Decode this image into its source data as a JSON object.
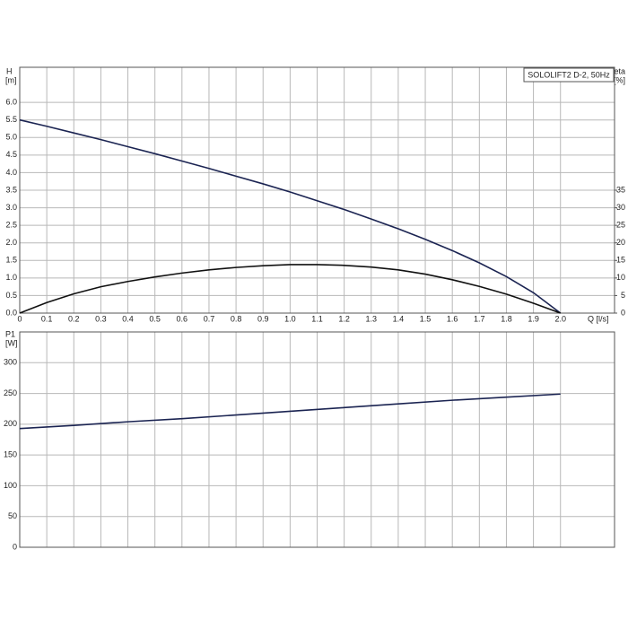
{
  "chart_data": [
    {
      "type": "line",
      "title": "SOLOLIFT2 D-2, 50Hz",
      "ylabel": "H",
      "yunit": "[m]",
      "y2label": "eta",
      "y2unit": "[%]",
      "xlabel": "Q [l/s]",
      "x": [
        0,
        0.1,
        0.2,
        0.3,
        0.4,
        0.5,
        0.6,
        0.7,
        0.8,
        0.9,
        1.0,
        1.1,
        1.2,
        1.3,
        1.4,
        1.5,
        1.6,
        1.7,
        1.8,
        1.9,
        2.0
      ],
      "xlim": [
        0,
        2.2
      ],
      "xticks": [
        0,
        0.1,
        0.2,
        0.3,
        0.4,
        0.5,
        0.6,
        0.7,
        0.8,
        0.9,
        {
          "value": 1,
          "label": "1.0"
        },
        1.1,
        1.2,
        1.3,
        1.4,
        1.5,
        1.6,
        1.7,
        1.8,
        1.9,
        {
          "value": 2,
          "label": "2.0"
        }
      ],
      "ylim": [
        0,
        7
      ],
      "yticks": [
        {
          "value": 0,
          "label": "0.0"
        },
        0.5,
        {
          "value": 1,
          "label": "1.0"
        },
        1.5,
        {
          "value": 2,
          "label": "2.0"
        },
        2.5,
        {
          "value": 3,
          "label": "3.0"
        },
        3.5,
        {
          "value": 4,
          "label": "4.0"
        },
        4.5,
        {
          "value": 5,
          "label": "5.0"
        },
        5.5,
        {
          "value": 6,
          "label": "6.0"
        }
      ],
      "y2lim": [
        0,
        70
      ],
      "y2ticks": [
        0,
        5,
        10,
        15,
        20,
        25,
        30,
        35
      ],
      "grid": true,
      "series": [
        {
          "color": "#1b2452",
          "axis": "y",
          "values": [
            5.5,
            5.32,
            5.13,
            4.94,
            4.74,
            4.54,
            4.33,
            4.12,
            3.9,
            3.68,
            3.45,
            3.2,
            2.95,
            2.68,
            2.4,
            2.1,
            1.78,
            1.43,
            1.04,
            0.58,
            0
          ]
        },
        {
          "color": "#111111",
          "axis": "y2",
          "values": [
            0,
            3.0,
            5.5,
            7.5,
            9.0,
            10.3,
            11.4,
            12.3,
            13.0,
            13.5,
            13.8,
            13.8,
            13.6,
            13.1,
            12.3,
            11.1,
            9.5,
            7.6,
            5.4,
            2.8,
            0
          ]
        }
      ]
    },
    {
      "type": "line",
      "ylabel": "P1",
      "yunit": "[W]",
      "x": [
        0,
        0.2,
        0.4,
        0.6,
        0.8,
        1.0,
        1.2,
        1.4,
        1.6,
        1.8,
        2.0
      ],
      "xlim": [
        0,
        2.2
      ],
      "ylim": [
        0,
        350
      ],
      "yticks": [
        0,
        50,
        100,
        150,
        200,
        250,
        300
      ],
      "grid": true,
      "series": [
        {
          "color": "#1b2452",
          "axis": "y",
          "values": [
            193,
            198,
            204,
            209,
            215,
            221,
            227,
            233,
            239,
            244,
            249
          ]
        }
      ]
    }
  ]
}
